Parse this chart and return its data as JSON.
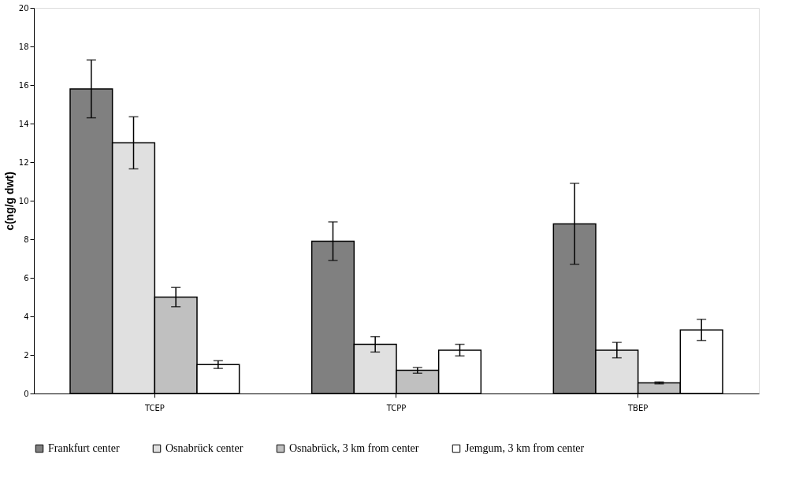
{
  "chart_data": {
    "type": "bar",
    "ylabel": "c(ng/g dwt)",
    "categories": [
      "TCEP",
      "TCPP",
      "TBEP"
    ],
    "series": [
      {
        "name": "Frankfurt center",
        "color": "#808080",
        "values": [
          15.8,
          7.9,
          8.8
        ],
        "errors": [
          1.5,
          1.0,
          2.1
        ]
      },
      {
        "name": "Osnabrück center",
        "color": "#e0e0e0",
        "values": [
          13.0,
          2.55,
          2.25
        ],
        "errors": [
          1.35,
          0.4,
          0.4
        ]
      },
      {
        "name": "Osnabrück, 3 km from center",
        "color": "#c0c0c0",
        "values": [
          5.0,
          1.2,
          0.55
        ],
        "errors": [
          0.5,
          0.15,
          0.05
        ]
      },
      {
        "name": "Jemgum, 3 km from center",
        "color": "#ffffff",
        "values": [
          1.5,
          2.25,
          3.3
        ],
        "errors": [
          0.2,
          0.3,
          0.55
        ]
      }
    ],
    "ylim": [
      0,
      20
    ],
    "yticks": [
      0,
      2,
      4,
      6,
      8,
      10,
      12,
      14,
      16,
      18,
      20
    ],
    "grid": false,
    "legend": "bottom"
  }
}
